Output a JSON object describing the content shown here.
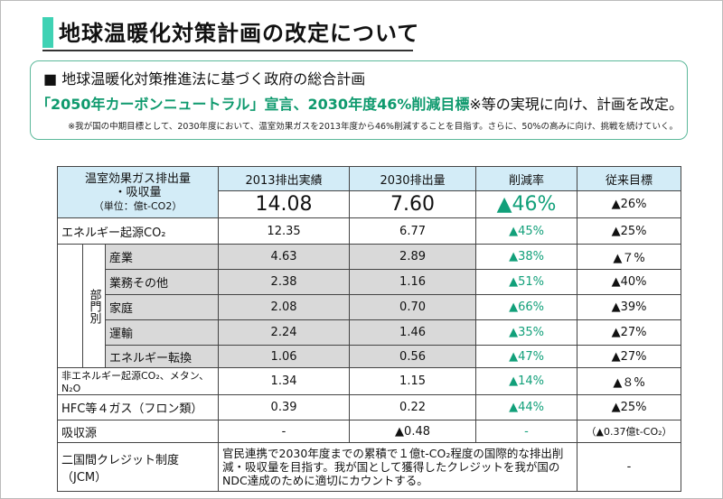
{
  "header": {
    "title": "地球温暖化対策計画の改定について"
  },
  "summary": {
    "heading": "■ 地球温暖化対策推進法に基づく政府の総合計画",
    "highlight": "「2050年カーボンニュートラル」宣言、2030年度46%削減目標",
    "highlight_rest": "※等の実現に向け、計画を改定。",
    "note": "※我が国の中期目標として、2030年度において、温室効果ガスを2013年度から46%削減することを目指す。さらに、50%の高みに向け、挑戦を続けていく。"
  },
  "table": {
    "header": {
      "label_lines": [
        "温室効果ガス排出量",
        "・吸収量",
        "（単位：億t-CO2）"
      ],
      "columns": [
        "2013排出実績",
        "2030排出量",
        "削減率",
        "従来目標"
      ]
    },
    "total": [
      "14.08",
      "7.60",
      "▲46%",
      "▲26%"
    ],
    "energy": {
      "label": "エネルギー起源CO₂",
      "values": [
        "12.35",
        "6.77",
        "▲45%",
        "▲25%"
      ]
    },
    "sectors": {
      "label": "部門別",
      "rows": [
        {
          "label": "産業",
          "values": [
            "4.63",
            "2.89",
            "▲38%",
            "▲７%"
          ]
        },
        {
          "label": "業務その他",
          "values": [
            "2.38",
            "1.16",
            "▲51%",
            "▲40%"
          ]
        },
        {
          "label": "家庭",
          "values": [
            "2.08",
            "0.70",
            "▲66%",
            "▲39%"
          ]
        },
        {
          "label": "運輸",
          "values": [
            "2.24",
            "1.46",
            "▲35%",
            "▲27%"
          ]
        },
        {
          "label": "エネルギー転換",
          "values": [
            "1.06",
            "0.56",
            "▲47%",
            "▲27%"
          ]
        }
      ]
    },
    "others": [
      {
        "label": "非エネルギー起源CO₂、メタン、N₂O",
        "values": [
          "1.34",
          "1.15",
          "▲14%",
          "▲８%"
        ]
      },
      {
        "label": "HFC等４ガス（フロン類）",
        "values": [
          "0.39",
          "0.22",
          "▲44%",
          "▲25%"
        ]
      },
      {
        "label": "吸収源",
        "values": [
          "-",
          "▲0.48",
          "-",
          "（▲0.37億t-CO₂）"
        ]
      }
    ],
    "jcm": {
      "label": "二国間クレジット制度（JCM）",
      "text": "官民連携で2030年度までの累積で１億t-CO₂程度の国際的な排出削減・吸収量を目指す。我が国として獲得したクレジットを我が国のNDC達成のために適切にカウントする。",
      "target": "-"
    }
  }
}
